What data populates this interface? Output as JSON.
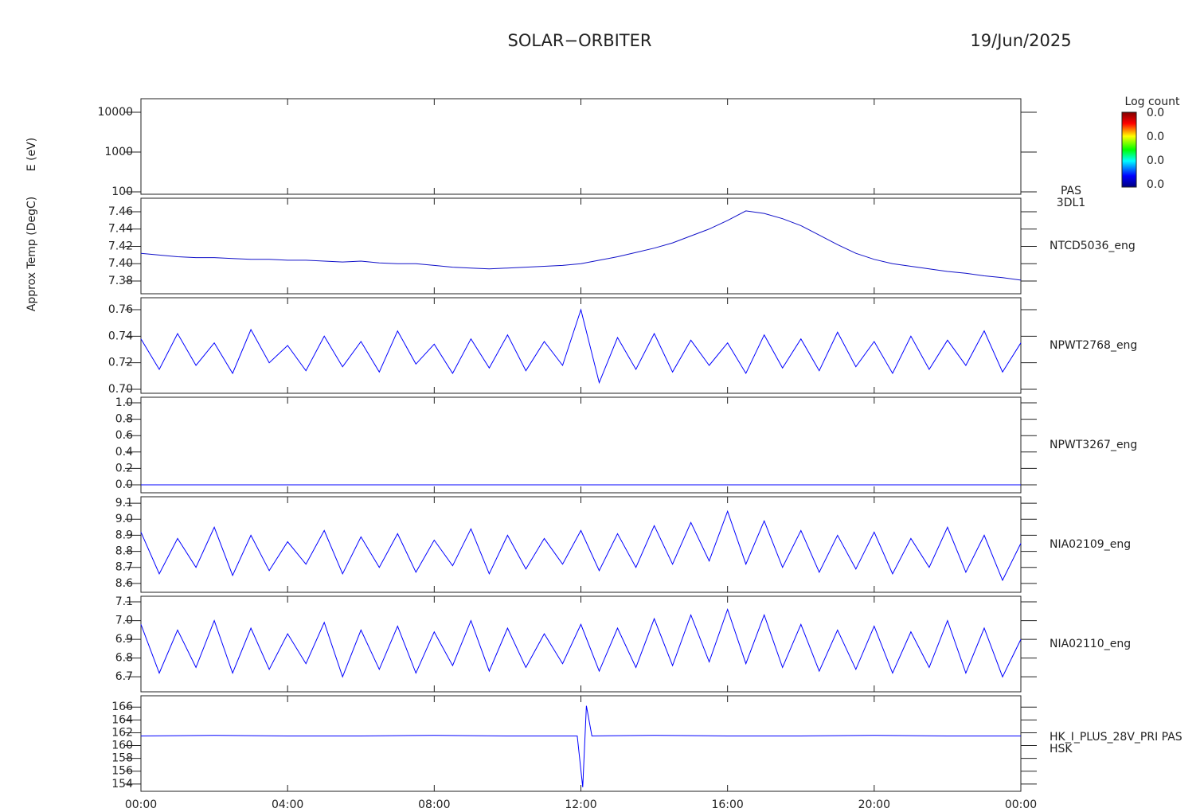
{
  "chart_data": {
    "type": "line",
    "title": "SOLAR−ORBITER",
    "date": "19/Jun/2025",
    "xlim": [
      0,
      24
    ],
    "xticks": [
      {
        "value": 0,
        "label": "00:00"
      },
      {
        "value": 4,
        "label": "04:00"
      },
      {
        "value": 8,
        "label": "08:00"
      },
      {
        "value": 12,
        "label": "12:00"
      },
      {
        "value": 16,
        "label": "16:00"
      },
      {
        "value": 20,
        "label": "20:00"
      },
      {
        "value": 24,
        "label": "00:00"
      }
    ],
    "x": [
      0,
      0.5,
      1,
      1.5,
      2,
      2.5,
      3,
      3.5,
      4,
      4.5,
      5,
      5.5,
      6,
      6.5,
      7,
      7.5,
      8,
      8.5,
      9,
      9.5,
      10,
      10.5,
      11,
      11.5,
      12,
      12.5,
      13,
      13.5,
      14,
      14.5,
      15,
      15.5,
      16,
      16.5,
      17,
      17.5,
      18,
      18.5,
      19,
      19.5,
      20,
      20.5,
      21,
      21.5,
      22,
      22.5,
      23,
      23.5,
      24
    ],
    "colorbar": {
      "title": "Log count",
      "labels": [
        "0.0",
        "0.0",
        "0.0",
        "0.0"
      ]
    },
    "panels": [
      {
        "type": "spectrogram",
        "ylabel": "E (eV)",
        "log": true,
        "ylim": [
          87,
          21900
        ],
        "yticks": [
          100,
          1000,
          10000
        ],
        "label": [
          "PAS",
          "3DL1"
        ]
      },
      {
        "type": "line",
        "ylabel": "Approx Temp (DegC)",
        "color": "#1010c8",
        "ylim": [
          7.3653,
          7.4756
        ],
        "yticks": [
          7.38,
          {
            "value": 7.4,
            "label": "7.40"
          },
          7.42,
          7.44,
          7.46
        ],
        "label": [
          "NTCD5036_eng"
        ],
        "values": [
          7.412,
          7.41,
          7.408,
          7.407,
          7.407,
          7.406,
          7.405,
          7.405,
          7.404,
          7.404,
          7.403,
          7.402,
          7.403,
          7.401,
          7.4,
          7.4,
          7.398,
          7.396,
          7.395,
          7.394,
          7.395,
          7.396,
          7.397,
          7.398,
          7.4,
          7.404,
          7.408,
          7.413,
          7.418,
          7.424,
          7.432,
          7.44,
          7.45,
          7.461,
          7.458,
          7.452,
          7.444,
          7.433,
          7.422,
          7.412,
          7.405,
          7.4,
          7.397,
          7.394,
          7.391,
          7.389,
          7.386,
          7.384,
          7.381
        ]
      },
      {
        "type": "line",
        "color": "#0000ff",
        "ylim": [
          0.697,
          0.769
        ],
        "yticks": [
          {
            "value": 0.7,
            "label": "0.70"
          },
          0.72,
          0.74,
          0.76
        ],
        "label": [
          "NPWT2768_eng"
        ],
        "values": [
          0.738,
          0.715,
          0.742,
          0.718,
          0.735,
          0.712,
          0.745,
          0.72,
          0.733,
          0.714,
          0.74,
          0.717,
          0.736,
          0.713,
          0.744,
          0.719,
          0.734,
          0.712,
          0.738,
          0.716,
          0.741,
          0.714,
          0.736,
          0.718,
          0.76,
          0.705,
          0.739,
          0.715,
          0.742,
          0.713,
          0.737,
          0.718,
          0.735,
          0.712,
          0.741,
          0.716,
          0.738,
          0.714,
          0.743,
          0.717,
          0.736,
          0.712,
          0.74,
          0.715,
          0.737,
          0.718,
          0.744,
          0.713,
          0.735
        ]
      },
      {
        "type": "line",
        "color": "#0000ff",
        "ylim": [
          -0.097,
          1.068
        ],
        "yticks": [
          {
            "value": 0,
            "label": "0.0"
          },
          0.2,
          0.4,
          0.6,
          0.8,
          {
            "value": 1,
            "label": "1.0"
          }
        ],
        "label": [
          "NPWT3267_eng"
        ],
        "values": [
          0,
          0,
          0,
          0,
          0,
          0,
          0,
          0,
          0,
          0,
          0,
          0,
          0,
          0,
          0,
          0,
          0,
          0,
          0,
          0,
          0,
          0,
          0,
          0,
          0,
          0,
          0,
          0,
          0,
          0,
          0,
          0,
          0,
          0,
          0,
          0,
          0,
          0,
          0,
          0,
          0,
          0,
          0,
          0,
          0,
          0,
          0,
          0,
          0
        ]
      },
      {
        "type": "line",
        "color": "#0000ff",
        "ylim": [
          8.545,
          9.14
        ],
        "yticks": [
          8.6,
          8.7,
          8.8,
          8.9,
          {
            "value": 9.0,
            "label": "9.0"
          },
          9.1
        ],
        "label": [
          "NIA02109_eng"
        ],
        "values": [
          8.92,
          8.66,
          8.88,
          8.7,
          8.95,
          8.65,
          8.9,
          8.68,
          8.86,
          8.72,
          8.93,
          8.66,
          8.89,
          8.7,
          8.91,
          8.67,
          8.87,
          8.71,
          8.94,
          8.66,
          8.9,
          8.69,
          8.88,
          8.72,
          8.93,
          8.68,
          8.91,
          8.7,
          8.96,
          8.72,
          8.98,
          8.74,
          9.05,
          8.72,
          8.99,
          8.7,
          8.93,
          8.67,
          8.9,
          8.69,
          8.92,
          8.66,
          8.88,
          8.7,
          8.95,
          8.67,
          8.9,
          8.62,
          8.85
        ]
      },
      {
        "type": "line",
        "color": "#0000ff",
        "ylim": [
          6.62,
          7.13
        ],
        "yticks": [
          6.7,
          6.8,
          6.9,
          {
            "value": 7.0,
            "label": "7.0"
          },
          7.1
        ],
        "label": [
          "NIA02110_eng"
        ],
        "values": [
          6.98,
          6.72,
          6.95,
          6.75,
          7.0,
          6.72,
          6.96,
          6.74,
          6.93,
          6.77,
          6.99,
          6.7,
          6.95,
          6.74,
          6.97,
          6.72,
          6.94,
          6.76,
          7.0,
          6.73,
          6.96,
          6.75,
          6.93,
          6.77,
          6.98,
          6.73,
          6.96,
          6.75,
          7.01,
          6.76,
          7.03,
          6.78,
          7.06,
          6.77,
          7.03,
          6.75,
          6.98,
          6.73,
          6.95,
          6.74,
          6.97,
          6.72,
          6.94,
          6.75,
          7.0,
          6.72,
          6.96,
          6.7,
          6.9
        ]
      },
      {
        "type": "line",
        "color": "#0000ff",
        "ylim": [
          152.86,
          167.77
        ],
        "yticks": [
          154,
          156,
          158,
          160,
          162,
          164,
          166
        ],
        "label": [
          "HK_I_PLUS_28V_PRI PAS",
          "HSK"
        ],
        "x": [
          0,
          2,
          4,
          6,
          8,
          10,
          11.9,
          12.05,
          12.15,
          12.3,
          14,
          16,
          18,
          20,
          22,
          24
        ],
        "values": [
          161.5,
          161.6,
          161.5,
          161.5,
          161.6,
          161.5,
          161.5,
          153.5,
          166.2,
          161.5,
          161.6,
          161.5,
          161.5,
          161.6,
          161.5,
          161.5
        ]
      }
    ]
  }
}
